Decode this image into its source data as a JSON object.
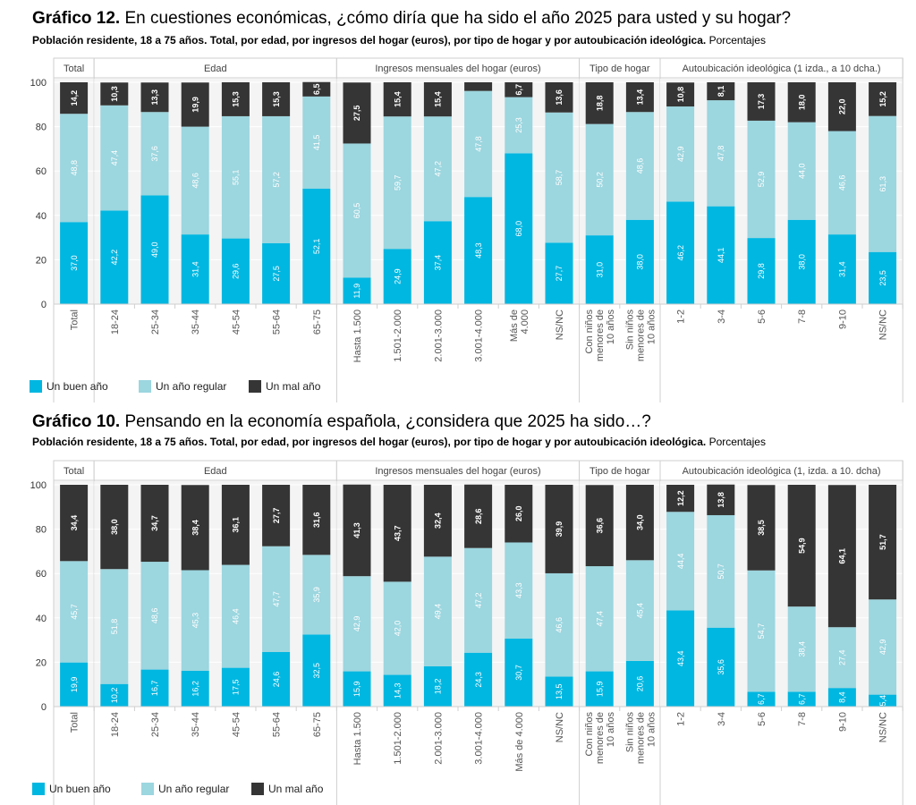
{
  "chart_data": [
    {
      "type": "bar",
      "stacked": true,
      "title_prefix": "Gráfico 12.",
      "title": "En cuestiones económicas, ¿cómo diría que ha sido el año 2025 para usted y su hogar?",
      "subtitle": "Población residente, 18 a 75 años. Total, por edad, por ingresos del hogar (euros), por tipo de hogar y por autoubicación ideológica.",
      "unit": "Porcentajes",
      "ylim": [
        0,
        100
      ],
      "yticks": [
        0,
        20,
        40,
        60,
        80,
        100
      ],
      "grid": true,
      "legend": "bottom-left",
      "groups": [
        {
          "name": "Total",
          "categories": [
            "Total"
          ]
        },
        {
          "name": "Edad",
          "categories": [
            "18-24",
            "25-34",
            "35-44",
            "45-54",
            "55-64",
            "65-75"
          ]
        },
        {
          "name": "Ingresos mensuales del hogar (euros)",
          "categories": [
            "Hasta 1.500",
            "1.501-2.000",
            "2.001-3.000",
            "3.001-4.000",
            "Más de\n4.000",
            "NS/NC"
          ]
        },
        {
          "name": "Tipo de hogar",
          "categories": [
            "Con niños\nmenores de\n10 años",
            "Sin niños\nmenores de\n10 años"
          ]
        },
        {
          "name": "Autoubicación ideológica (1 izda., a 10 dcha.)",
          "categories": [
            "1-2",
            "3-4",
            "5-6",
            "7-8",
            "9-10",
            "NS/NC"
          ]
        }
      ],
      "series": [
        {
          "name": "Un buen año",
          "color": "#00b7e1",
          "values": [
            37.0,
            42.2,
            49.0,
            31.4,
            29.6,
            27.5,
            52.1,
            11.9,
            24.9,
            37.4,
            48.3,
            68.0,
            27.7,
            31.0,
            38.0,
            46.2,
            44.1,
            29.8,
            38.0,
            31.4,
            23.5
          ]
        },
        {
          "name": "Un año regular",
          "color": "#9cd6df",
          "values": [
            48.8,
            47.4,
            37.6,
            48.6,
            55.1,
            57.2,
            41.5,
            60.5,
            59.7,
            47.2,
            47.8,
            25.3,
            58.7,
            50.2,
            48.6,
            42.9,
            47.8,
            52.9,
            44.0,
            46.6,
            61.3
          ]
        },
        {
          "name": "Un mal año",
          "color": "#353535",
          "values": [
            14.2,
            10.3,
            13.3,
            19.9,
            15.3,
            15.3,
            6.5,
            27.5,
            15.4,
            15.4,
            3.9,
            6.7,
            13.6,
            18.8,
            13.4,
            10.8,
            8.1,
            17.3,
            18.0,
            22.0,
            15.2
          ]
        }
      ]
    },
    {
      "type": "bar",
      "stacked": true,
      "title_prefix": "Gráfico 10.",
      "title": "Pensando en la economía española, ¿considera que 2025 ha sido…?",
      "subtitle": "Población residente, 18 a 75 años. Total, por edad, por ingresos del hogar (euros), por tipo de hogar y por autoubicación ideológica.",
      "unit": "Porcentajes",
      "ylim": [
        0,
        100
      ],
      "yticks": [
        0,
        20,
        40,
        60,
        80,
        100
      ],
      "grid": true,
      "legend": "bottom-left",
      "groups": [
        {
          "name": "Total",
          "categories": [
            "Total"
          ]
        },
        {
          "name": "Edad",
          "categories": [
            "18-24",
            "25-34",
            "35-44",
            "45-54",
            "55-64",
            "65-75"
          ]
        },
        {
          "name": "Ingresos mensuales del hogar (euros)",
          "categories": [
            "Hasta 1.500",
            "1.501-2.000",
            "2.001-3.000",
            "3.001-4.000",
            "Más de 4.000",
            "NS/NC"
          ]
        },
        {
          "name": "Tipo de hogar",
          "categories": [
            "Con niños\nmenores de\n10 años",
            "Sin niños\nmenores de\n10 años"
          ]
        },
        {
          "name": "Autoubicación ideológica (1, izda. a 10. dcha)",
          "categories": [
            "1-2",
            "3-4",
            "5-6",
            "7-8",
            "9-10",
            "NS/NC"
          ]
        }
      ],
      "series": [
        {
          "name": "Un buen año",
          "color": "#00b7e1",
          "values": [
            19.9,
            10.2,
            16.7,
            16.2,
            17.5,
            24.6,
            32.5,
            15.9,
            14.3,
            18.2,
            24.3,
            30.7,
            13.5,
            15.9,
            20.6,
            43.4,
            35.6,
            6.7,
            6.7,
            8.4,
            5.4
          ]
        },
        {
          "name": "Un año regular",
          "color": "#9cd6df",
          "values": [
            45.7,
            51.8,
            48.6,
            45.3,
            46.4,
            47.7,
            35.9,
            42.9,
            42.0,
            49.4,
            47.2,
            43.3,
            46.6,
            47.4,
            45.4,
            44.4,
            50.7,
            54.7,
            38.4,
            27.4,
            42.9
          ]
        },
        {
          "name": "Un mal año",
          "color": "#353535",
          "values": [
            34.4,
            38.0,
            34.7,
            38.4,
            36.1,
            27.7,
            31.6,
            41.3,
            43.7,
            32.4,
            28.6,
            26.0,
            39.9,
            36.6,
            34.0,
            12.2,
            13.8,
            38.5,
            54.9,
            64.1,
            51.7
          ]
        }
      ]
    }
  ]
}
